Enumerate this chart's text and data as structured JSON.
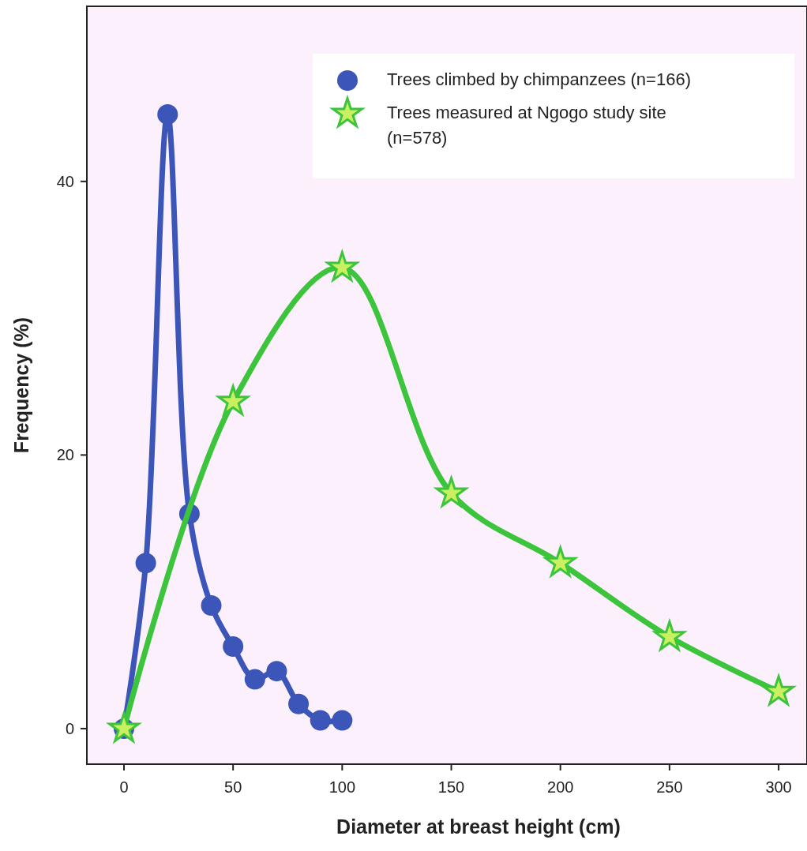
{
  "chart_data": {
    "type": "line",
    "xlabel": "Diameter at breast height (cm)",
    "ylabel": "Frequency (%)",
    "xlim": [
      -17,
      313
    ],
    "ylim": [
      -2.6,
      52.8
    ],
    "xticks": [
      0,
      50,
      100,
      150,
      200,
      250,
      300
    ],
    "yticks": [
      0,
      20,
      40
    ],
    "grid": false,
    "legend": "top right",
    "series": [
      {
        "name": "Trees climbed by chimpanzees (n=166)",
        "color": "#3b55b8",
        "marker": "circle",
        "x": [
          0,
          10,
          20,
          30,
          40,
          50,
          60,
          70,
          80,
          90,
          100
        ],
        "values": [
          0,
          12.1,
          44.9,
          15.7,
          9.0,
          6.0,
          3.6,
          4.2,
          1.8,
          0.6,
          0.6
        ]
      },
      {
        "name": "Trees measured at Ngogo study site (n=578)",
        "color": "#3cc43c",
        "marker": "star",
        "x": [
          0,
          50,
          100,
          150,
          200,
          250,
          300
        ],
        "values": [
          0,
          23.9,
          33.7,
          17.2,
          12.1,
          6.7,
          2.7
        ]
      }
    ]
  }
}
